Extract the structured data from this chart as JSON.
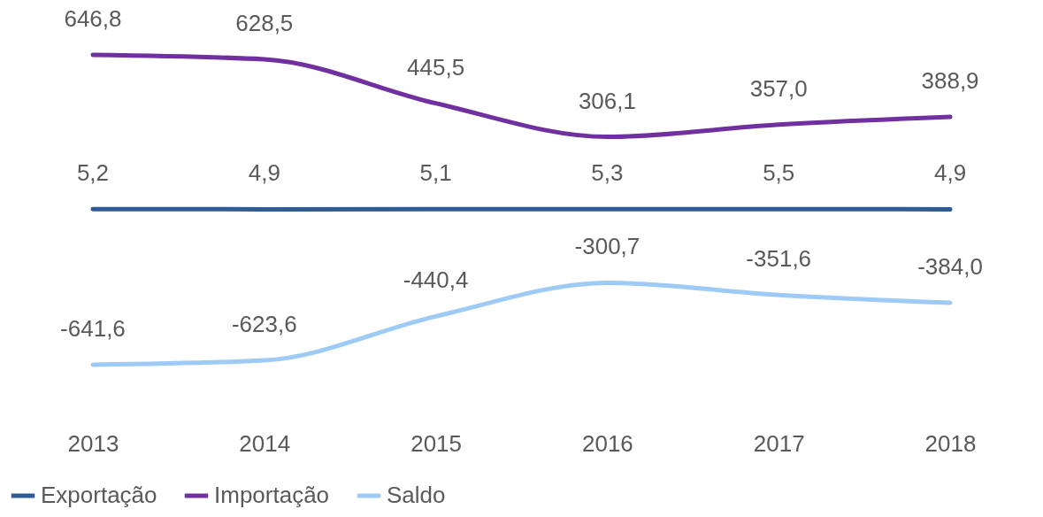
{
  "chart_data": {
    "type": "line",
    "categories": [
      "2013",
      "2014",
      "2015",
      "2016",
      "2017",
      "2018"
    ],
    "series": [
      {
        "name": "Exportação",
        "color": "#2f5b96",
        "values": [
          5.2,
          4.9,
          5.1,
          5.3,
          5.5,
          4.9
        ],
        "value_labels": [
          "5,2",
          "4,9",
          "5,1",
          "5,3",
          "5,5",
          "4,9"
        ]
      },
      {
        "name": "Importação",
        "color": "#7030a0",
        "values": [
          646.8,
          628.5,
          445.5,
          306.1,
          357.0,
          388.9
        ],
        "value_labels": [
          "646,8",
          "628,5",
          "445,5",
          "306,1",
          "357,0",
          "388,9"
        ]
      },
      {
        "name": "Saldo",
        "color": "#9dcbf5",
        "values": [
          -641.6,
          -623.6,
          -440.4,
          -300.7,
          -351.6,
          -384.0
        ],
        "value_labels": [
          "-641,6",
          "-623,6",
          "-440,4",
          "-300,7",
          "-351,6",
          "-384,0"
        ]
      }
    ],
    "legend": "bottom",
    "marker": "none",
    "line_style": "solid"
  }
}
